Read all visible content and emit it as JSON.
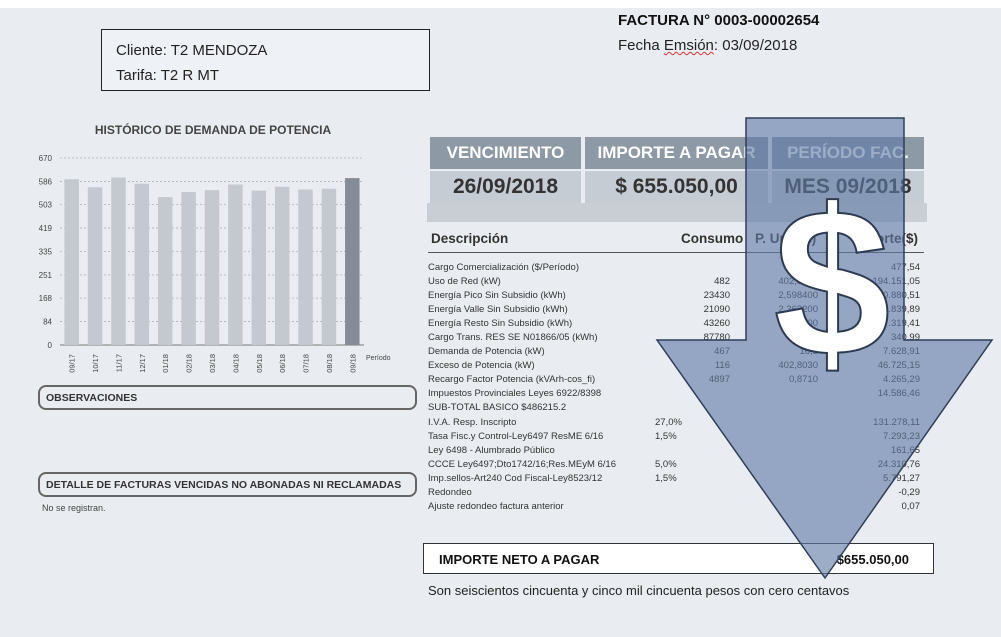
{
  "client": {
    "cliente": "Cliente: T2 MENDOZA",
    "tarifa": "Tarifa: T2 R MT"
  },
  "invoice": {
    "title": "FACTURA N° 0003-00002654",
    "date_prefix": "Fecha ",
    "date_word": "Emsión",
    "date_value": ": 03/09/2018"
  },
  "summary": {
    "vencimiento_label": "VENCIMIENTO",
    "importe_label": "IMPORTE A PAGAR",
    "periodo_label": "PERÍODO FAC.",
    "vencimiento_value": "26/09/2018",
    "importe_value": "$ 655.050,00",
    "periodo_value": "MES 09/2018"
  },
  "table": {
    "h_desc": "Descripción",
    "h_cons": "Consumo",
    "h_pu": "P. Unit.($)",
    "h_imp": "Importe($)",
    "rows": [
      {
        "desc": "Cargo Comercialización ($/Período)",
        "pct": "",
        "cons": "",
        "pu": "",
        "imp": "477,54"
      },
      {
        "desc": "Uso de Red (kW)",
        "pct": "",
        "cons": "482",
        "pu": "402,8030",
        "imp": "194.151,05"
      },
      {
        "desc": "Energía Pico Sin Subsidio (kWh)",
        "pct": "",
        "cons": "23430",
        "pu": "2,598400",
        "imp": "60.880,51"
      },
      {
        "desc": "Energía Valle Sin Subsidio (kWh)",
        "pct": "",
        "cons": "21090",
        "pu": "2,363200",
        "imp": "49.839,89"
      },
      {
        "desc": "Energía Resto Sin Subsidio (kWh)",
        "pct": "",
        "cons": "43260",
        "pu": "2,480800",
        "imp": "107.319,41"
      },
      {
        "desc": "Cargo Trans. RES SE N01866/05 (kWh)",
        "pct": "",
        "cons": "87780",
        "pu": "",
        "imp": "340,99"
      },
      {
        "desc": "Demanda de Potencia (kW)",
        "pct": "",
        "cons": "467",
        "pu": "16,3",
        "imp": "7.628,91"
      },
      {
        "desc": "Exceso de Potencia (kW)",
        "pct": "",
        "cons": "116",
        "pu": "402,8030",
        "imp": "46.725,15"
      },
      {
        "desc": "Recargo Factor Potencia (kVArh-cos_fi)",
        "pct": "",
        "cons": "4897",
        "pu": "0,8710",
        "imp": "4.265,29"
      },
      {
        "desc": "Impuestos Provinciales Leyes 6922/8398",
        "pct": "",
        "cons": "",
        "pu": "",
        "imp": "14.586,46"
      },
      {
        "desc": "SUB-TOTAL BASICO  $486215.2",
        "pct": "",
        "cons": "",
        "pu": "",
        "imp": ""
      },
      {
        "desc": "I.V.A. Resp. Inscripto",
        "pct": "27,0%",
        "cons": "",
        "pu": "",
        "imp": "131.278,11"
      },
      {
        "desc": "Tasa Fisc.y Control-Ley6497 ResME 6/16",
        "pct": "1,5%",
        "cons": "",
        "pu": "",
        "imp": "7.293,23"
      },
      {
        "desc": "Ley 6498 - Alumbrado Público",
        "pct": "",
        "cons": "",
        "pu": "",
        "imp": "161,65"
      },
      {
        "desc": "CCCE Ley6497;Dto1742/16;Res.MEyM 6/16",
        "pct": "5,0%",
        "cons": "",
        "pu": "",
        "imp": "24.310,76"
      },
      {
        "desc": "Imp.sellos-Art240 Cod Fiscal-Ley8523/12",
        "pct": "1,5%",
        "cons": "",
        "pu": "",
        "imp": "5.791,27"
      },
      {
        "desc": "Redondeo",
        "pct": "",
        "cons": "",
        "pu": "",
        "imp": "-0,29"
      },
      {
        "desc": "Ajuste redondeo factura anterior",
        "pct": "",
        "cons": "",
        "pu": "",
        "imp": "0,07"
      }
    ]
  },
  "total": {
    "label": "IMPORTE NETO A PAGAR",
    "amount": "$655.050,00",
    "words": "Son seiscientos cincuenta y cinco mil cincuenta pesos con cero centavos"
  },
  "sections": {
    "observaciones": "OBSERVACIONES",
    "detalle": "DETALLE DE FACTURAS VENCIDAS NO ABONADAS NI RECLAMADAS",
    "no_registran": "No se registran."
  },
  "overlay": {
    "symbol": "$",
    "arrow_color": "#5f7ba6"
  },
  "chart_data": {
    "type": "bar",
    "title": "HISTÓRICO DE DEMANDA DE POTENCIA",
    "xlabel": "Período",
    "ylabel": "",
    "categories": [
      "09/17",
      "10/17",
      "11/17",
      "12/17",
      "01/18",
      "02/18",
      "03/18",
      "04/18",
      "05/18",
      "06/18",
      "07/18",
      "08/18",
      "09/18"
    ],
    "values": [
      594,
      565,
      600,
      578,
      530,
      548,
      555,
      575,
      553,
      567,
      557,
      560,
      598
    ],
    "highlight_last": true,
    "yticks": [
      0,
      84,
      168,
      251,
      335,
      419,
      503,
      586,
      670
    ],
    "ylim": [
      0,
      670
    ],
    "grid": true,
    "bar_color": "#c4c9d0",
    "highlight_color": "#858c96"
  }
}
